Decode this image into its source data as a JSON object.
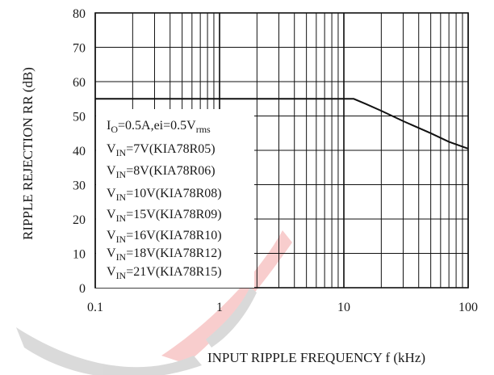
{
  "chart_data": {
    "type": "line",
    "xlabel": "INPUT RIPPLE FREQUENCY  f  (kHz)",
    "ylabel": "RIPPLE REJECTION RR (dB)",
    "xscale": "log",
    "xlim": [
      0.1,
      100
    ],
    "ylim": [
      0,
      80
    ],
    "x_ticks": [
      "0.1",
      "1",
      "10",
      "100"
    ],
    "y_ticks": [
      "0",
      "10",
      "20",
      "30",
      "40",
      "50",
      "60",
      "70",
      "80"
    ],
    "grid": true,
    "series": [
      {
        "x": [
          0.1,
          1,
          5,
          10,
          12,
          15,
          20,
          30,
          50,
          70,
          100
        ],
        "y": [
          55,
          55,
          55,
          55,
          55,
          53.5,
          51.5,
          48.5,
          45,
          42.5,
          40.5
        ]
      }
    ],
    "annotation_lines": [
      {
        "main": "I",
        "sub": "O",
        "rest": "=0.5A,ei=0.5V",
        "sub2": "rms"
      },
      {
        "main": "V",
        "sub": "IN",
        "rest": "=7V(KIA78R05)",
        "sub2": ""
      },
      {
        "main": "V",
        "sub": "IN",
        "rest": "=8V(KIA78R06)",
        "sub2": ""
      },
      {
        "main": "V",
        "sub": "IN",
        "rest": "=10V(KIA78R08)",
        "sub2": ""
      },
      {
        "main": "V",
        "sub": "IN",
        "rest": "=15V(KIA78R09)",
        "sub2": ""
      },
      {
        "main": "V",
        "sub": "IN",
        "rest": "=16V(KIA78R10)",
        "sub2": ""
      },
      {
        "main": "V",
        "sub": "IN",
        "rest": "=18V(KIA78R12)",
        "sub2": ""
      },
      {
        "main": "V",
        "sub": "IN",
        "rest": "=21V(KIA78R15)",
        "sub2": ""
      }
    ]
  },
  "colors": {
    "line": "#111111",
    "grid": "#111111",
    "watermark_red": "#e8504f",
    "watermark_gray": "#7a7a7a"
  }
}
